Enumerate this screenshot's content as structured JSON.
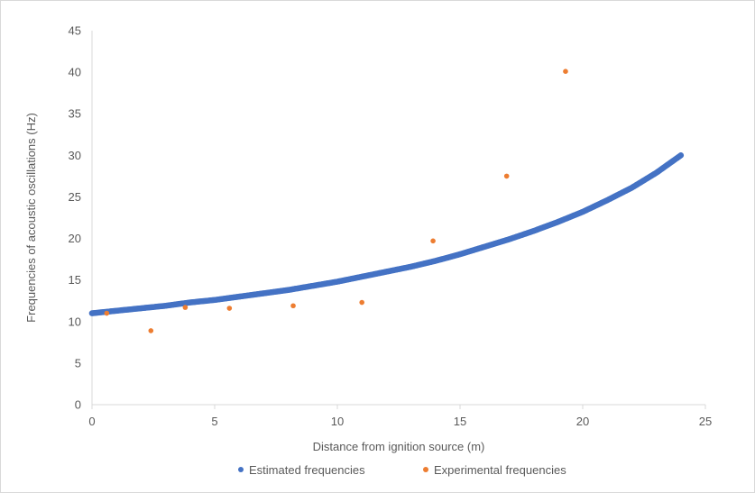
{
  "chart_data": {
    "type": "scatter",
    "title": "",
    "xlabel": "Distance from ignition source (m)",
    "ylabel": "Frequencies of acoustic oscillations (Hz)",
    "xlim": [
      0,
      25
    ],
    "ylim": [
      0,
      45
    ],
    "x_ticks": [
      0,
      5,
      10,
      15,
      20,
      25
    ],
    "y_ticks": [
      0,
      5,
      10,
      15,
      20,
      25,
      30,
      35,
      40,
      45
    ],
    "grid": false,
    "legend_position": "bottom",
    "series": [
      {
        "name": "Estimated frequencies",
        "color": "#4472C4",
        "marker": "dense-points",
        "x": [
          0,
          1,
          2,
          3,
          4,
          5,
          6,
          7,
          8,
          9,
          10,
          11,
          12,
          13,
          14,
          15,
          16,
          17,
          18,
          19,
          20,
          21,
          22,
          23,
          24
        ],
        "y": [
          11.0,
          11.3,
          11.6,
          11.9,
          12.3,
          12.6,
          13.0,
          13.4,
          13.8,
          14.3,
          14.8,
          15.4,
          16.0,
          16.6,
          17.3,
          18.1,
          19.0,
          19.9,
          20.9,
          22.0,
          23.2,
          24.6,
          26.1,
          27.9,
          30.0
        ]
      },
      {
        "name": "Experimental frequencies",
        "color": "#ED7D31",
        "marker": "circle",
        "x": [
          0.6,
          2.4,
          3.8,
          5.6,
          8.2,
          11.0,
          13.9,
          16.9,
          19.3
        ],
        "y": [
          11.0,
          8.9,
          11.7,
          11.6,
          11.9,
          12.3,
          19.7,
          27.5,
          40.1
        ]
      }
    ]
  }
}
